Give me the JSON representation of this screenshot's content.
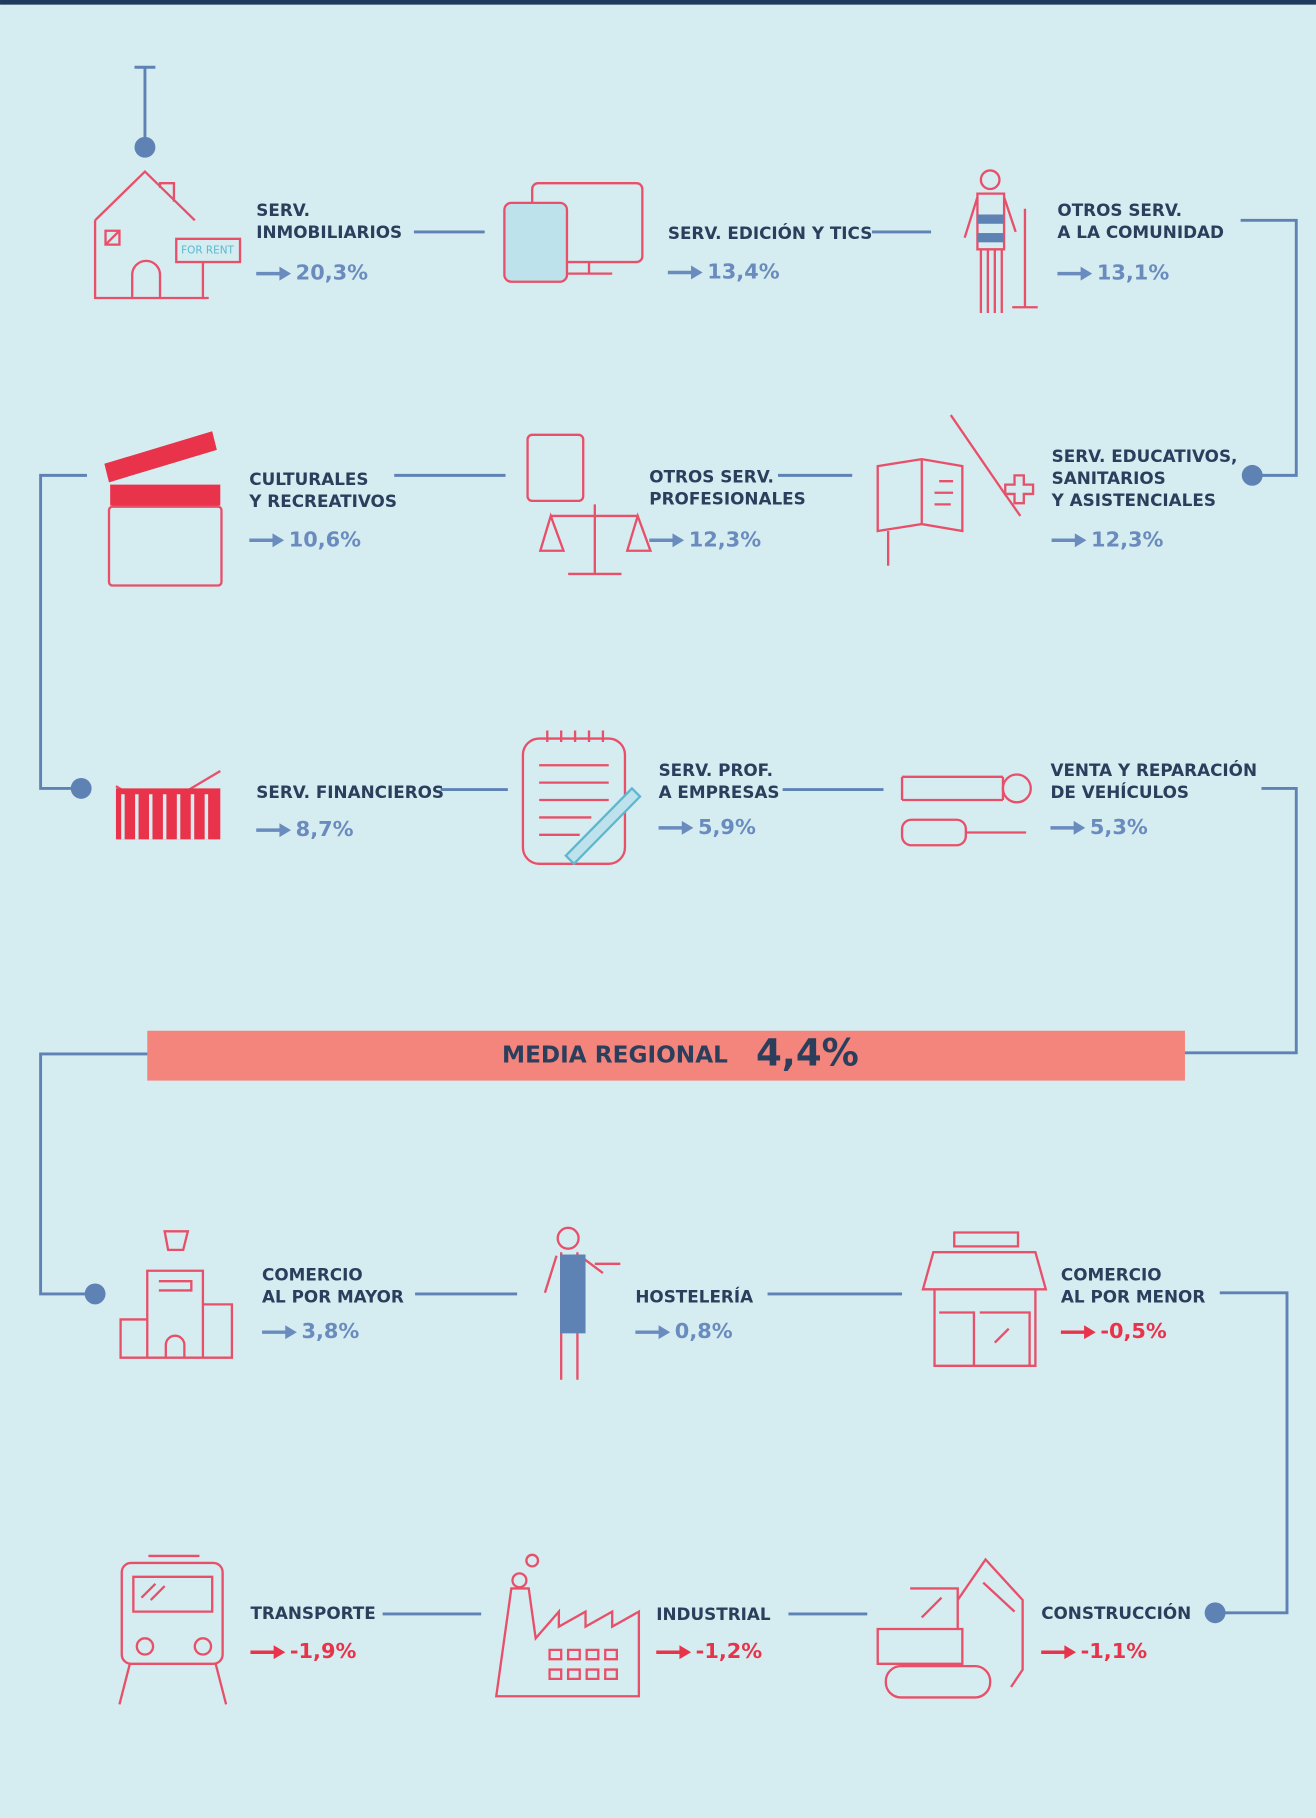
{
  "items": [
    {
      "lines": [
        "SERV.",
        "INMOBILIARIOS"
      ],
      "value": "20,3%",
      "color": "#6a8bbd",
      "icon_text": "FOR RENT"
    },
    {
      "lines": [
        "SERV. EDICIÓN Y TICS"
      ],
      "value": "13,4%",
      "color": "#6a8bbd"
    },
    {
      "lines": [
        "OTROS SERV.",
        "A LA COMUNIDAD"
      ],
      "value": "13,1%",
      "color": "#6a8bbd"
    },
    {
      "lines": [
        "CULTURALES",
        "Y RECREATIVOS"
      ],
      "value": "10,6%",
      "color": "#6a8bbd"
    },
    {
      "lines": [
        "OTROS SERV.",
        "PROFESIONALES"
      ],
      "value": "12,3%",
      "color": "#6a8bbd"
    },
    {
      "lines": [
        "SERV. EDUCATIVOS,",
        "SANITARIOS",
        "Y ASISTENCIALES"
      ],
      "value": "12,3%",
      "color": "#6a8bbd"
    },
    {
      "lines": [
        "SERV. FINANCIEROS"
      ],
      "value": "8,7%",
      "color": "#6a8bbd"
    },
    {
      "lines": [
        "SERV. PROF.",
        "A EMPRESAS"
      ],
      "value": "5,9%",
      "color": "#6a8bbd"
    },
    {
      "lines": [
        "VENTA Y REPARACIÓN",
        "DE VEHÍCULOS"
      ],
      "value": "5,3%",
      "color": "#6a8bbd"
    },
    {
      "lines": [
        "COMERCIO",
        "AL POR MAYOR"
      ],
      "value": "3,8%",
      "color": "#6a8bbd"
    },
    {
      "lines": [
        "HOSTELERÍA"
      ],
      "value": "0,8%",
      "color": "#6a8bbd"
    },
    {
      "lines": [
        "COMERCIO",
        "AL POR MENOR"
      ],
      "value": "-0,5%",
      "color": "#e8334a"
    },
    {
      "lines": [
        "TRANSPORTE"
      ],
      "value": "-1,9%",
      "color": "#e8334a"
    },
    {
      "lines": [
        "INDUSTRIAL"
      ],
      "value": "-1,2%",
      "color": "#e8334a"
    },
    {
      "lines": [
        "CONSTRUCCIÓN"
      ],
      "value": "-1,1%",
      "color": "#e8334a"
    }
  ],
  "banner": {
    "label": "MEDIA REGIONAL",
    "value": "4,4%"
  }
}
